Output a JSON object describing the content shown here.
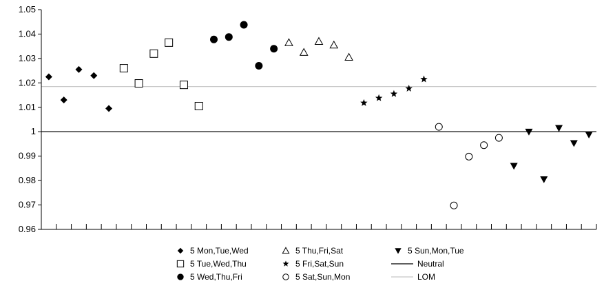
{
  "chart_data": {
    "type": "scatter",
    "title": "",
    "xlabel": "",
    "ylabel": "",
    "ylim": [
      0.96,
      1.05
    ],
    "yticks": [
      "0.96",
      "0.97",
      "0.98",
      "0.99",
      "1",
      "1.01",
      "1.02",
      "1.03",
      "1.04",
      "1.05"
    ],
    "ytick_values": [
      0.96,
      0.97,
      0.98,
      0.99,
      1.0,
      1.01,
      1.02,
      1.03,
      1.04,
      1.05
    ],
    "x_count": 37,
    "grid": false,
    "legend_position": "bottom",
    "series": [
      {
        "name": "5 Mon,Tue,Wed",
        "marker": "diamond",
        "x": [
          1,
          2,
          3,
          4,
          5
        ],
        "values": [
          1.0225,
          1.013,
          1.0255,
          1.023,
          1.0095
        ]
      },
      {
        "name": "5 Tue,Wed,Thu",
        "marker": "square",
        "x": [
          6,
          7,
          8,
          9,
          10,
          11
        ],
        "values": [
          1.026,
          1.0198,
          1.032,
          1.0365,
          1.0192,
          1.0105
        ]
      },
      {
        "name": "5 Wed,Thu,Fri",
        "marker": "circle-filled",
        "x": [
          12,
          13,
          14,
          15,
          16
        ],
        "values": [
          1.0378,
          1.0388,
          1.0438,
          1.027,
          1.034
        ]
      },
      {
        "name": "5 Thu,Fri,Sat",
        "marker": "triangle-up",
        "x": [
          17,
          18,
          19,
          20,
          21
        ],
        "values": [
          1.0365,
          1.0325,
          1.037,
          1.0355,
          1.0305
        ]
      },
      {
        "name": "5 Fri,Sat,Sun",
        "marker": "star",
        "x": [
          22,
          23,
          24,
          25,
          26
        ],
        "values": [
          1.0118,
          1.0138,
          1.0155,
          1.0177,
          1.0215
        ]
      },
      {
        "name": "5 Sat,Sun,Mon",
        "marker": "circle-open",
        "x": [
          27,
          28,
          29,
          30,
          31
        ],
        "values": [
          1.002,
          0.9698,
          0.9898,
          0.9945,
          0.9975
        ]
      },
      {
        "name": "5 Sun,Mon,Tue",
        "marker": "triangle-down",
        "x": [
          32,
          33,
          34,
          35,
          36,
          37
        ],
        "values": [
          0.986,
          1.0,
          0.9805,
          1.0015,
          0.9953,
          0.9988
        ]
      }
    ],
    "reference_lines": [
      {
        "name": "Neutral",
        "value": 1.0,
        "color": "#000000"
      },
      {
        "name": "LOM",
        "value": 1.0185,
        "color": "#c8c8c8"
      }
    ]
  }
}
